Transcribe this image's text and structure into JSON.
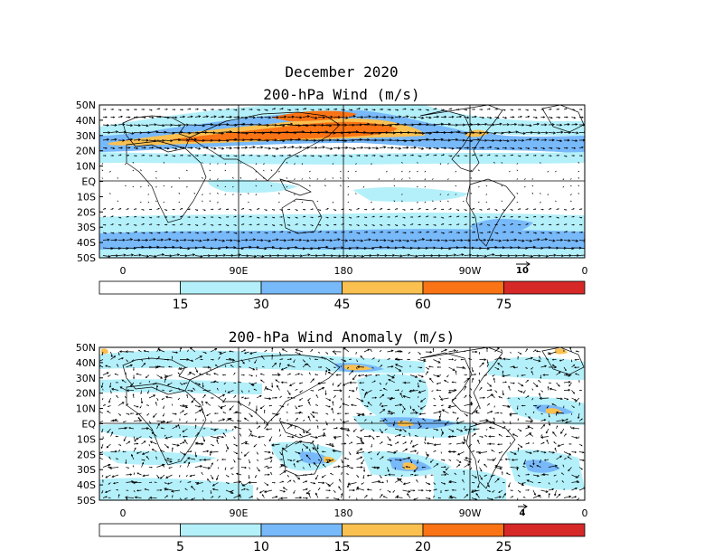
{
  "title": "December 2020",
  "panels": [
    {
      "id": "mean",
      "title": "200-hPa Wind (m/s)",
      "lat_labels": [
        "50N",
        "40N",
        "30N",
        "20N",
        "10N",
        "EQ",
        "10S",
        "20S",
        "30S",
        "40S",
        "50S"
      ],
      "lon_labels": [
        "0",
        "90E",
        "180",
        "90W",
        "0"
      ],
      "reference_vector": "10",
      "colorbar": {
        "labels": [
          "15",
          "30",
          "45",
          "60",
          "75"
        ],
        "colors": [
          "#ffffff",
          "#b4f0fa",
          "#78b9fa",
          "#fac050",
          "#fa7314",
          "#d72828"
        ]
      },
      "jets": [
        {
          "lat": 30,
          "lon_start": 10,
          "lon_end": 225,
          "level": 3
        },
        {
          "lat": 32,
          "lon_start": 70,
          "lon_end": 200,
          "level": 4
        },
        {
          "lat": 38,
          "lon_start": 120,
          "lon_end": 195,
          "level": 4
        },
        {
          "lat": 28,
          "lon_start": 270,
          "lon_end": 290,
          "level": 3
        },
        {
          "lat": -45,
          "lon_start": 0,
          "lon_end": 360,
          "level": 2
        }
      ]
    },
    {
      "id": "anomaly",
      "title": "200-hPa Wind Anomaly (m/s)",
      "lat_labels": [
        "50N",
        "40N",
        "30N",
        "20N",
        "10N",
        "EQ",
        "10S",
        "20S",
        "30S",
        "40S",
        "50S"
      ],
      "lon_labels": [
        "0",
        "90E",
        "180",
        "90W",
        "0"
      ],
      "reference_vector": "4",
      "colorbar": {
        "labels": [
          "5",
          "10",
          "15",
          "20",
          "25"
        ],
        "colors": [
          "#ffffff",
          "#b4f0fa",
          "#78b9fa",
          "#fac050",
          "#fa7314",
          "#d72828"
        ]
      }
    }
  ]
}
